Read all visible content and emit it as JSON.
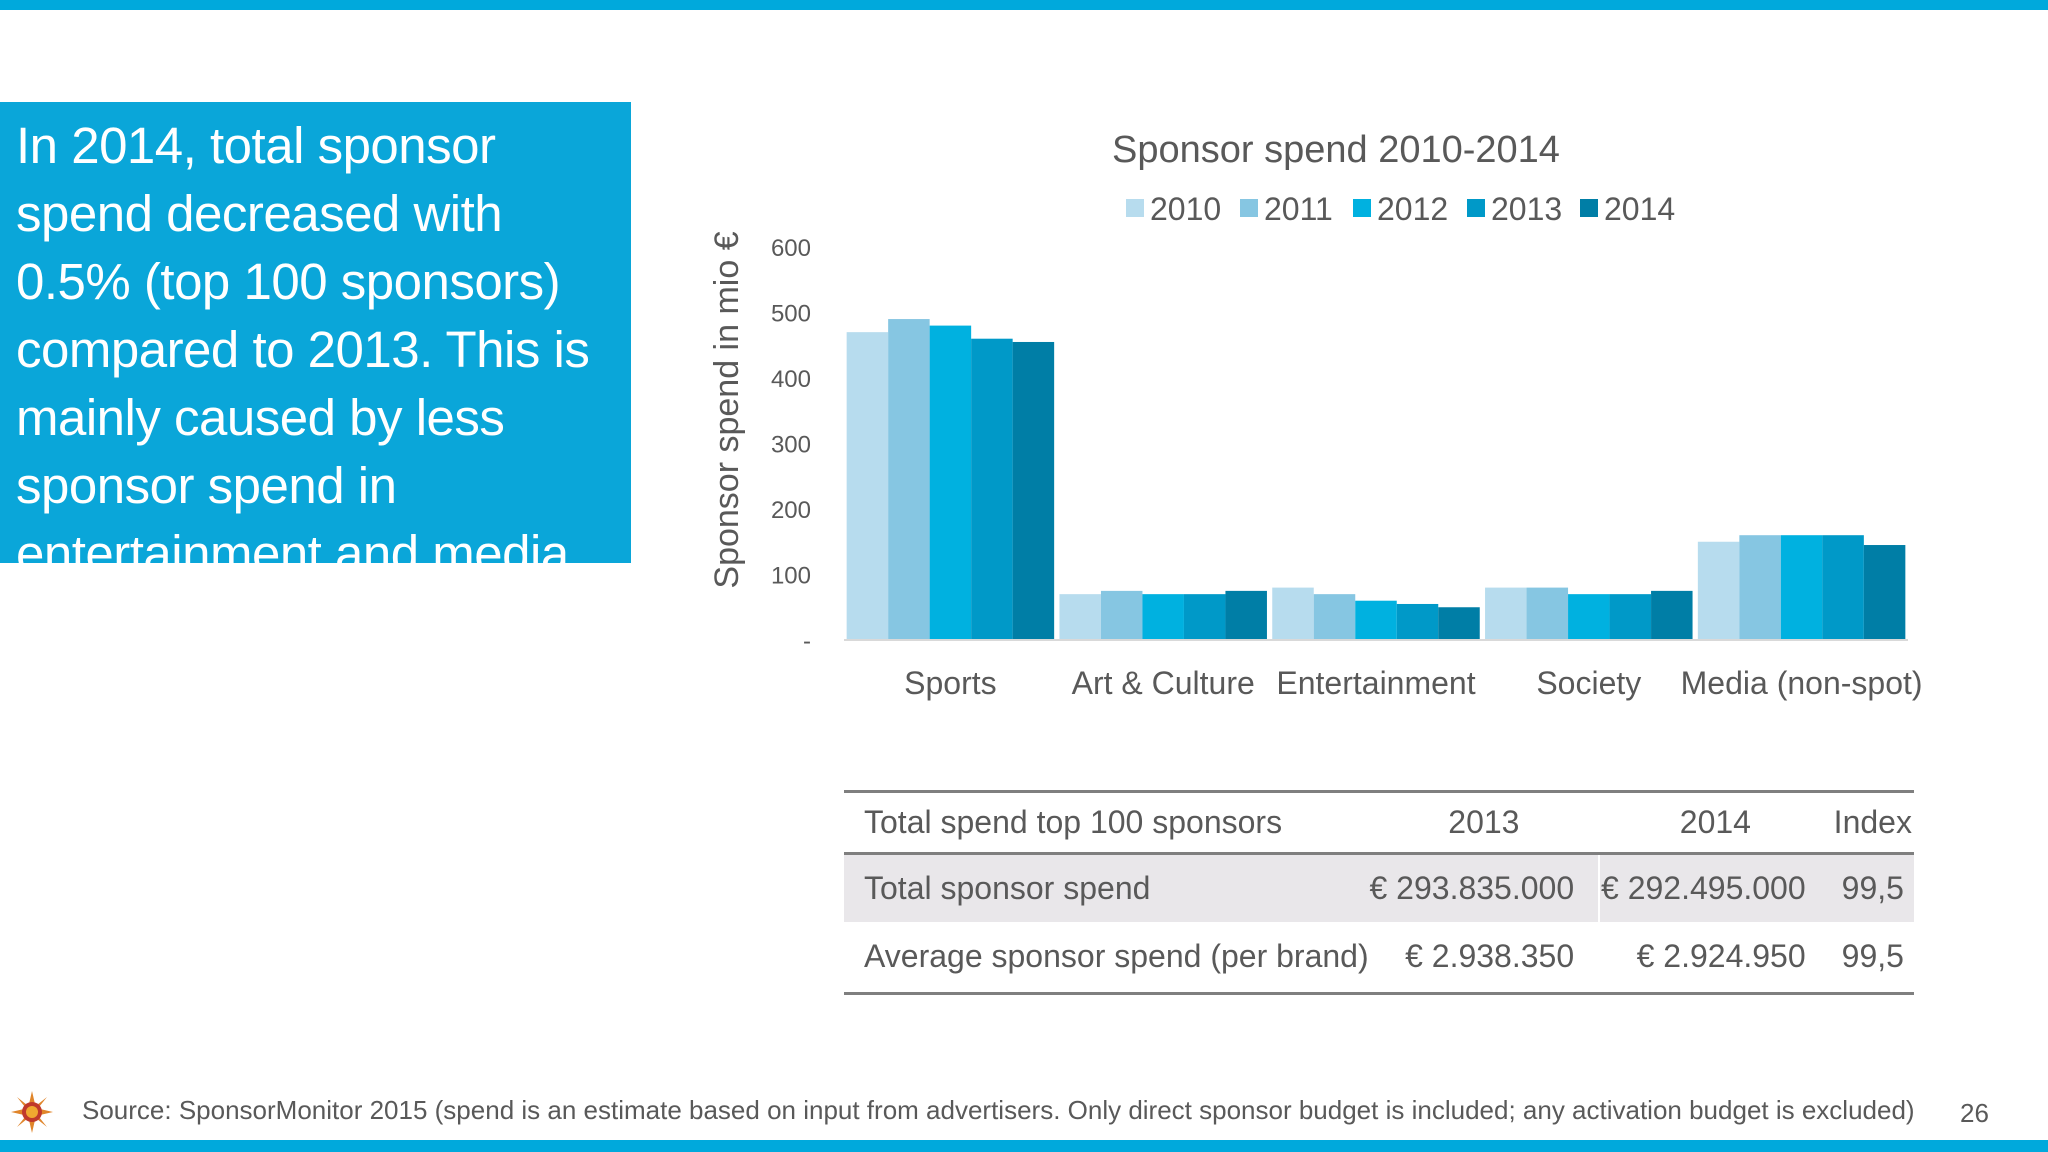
{
  "callout": {
    "text": "In 2014, total sponsor spend decreased with 0.5% (top 100 sponsors)  compared to 2013. This is mainly caused by less sponsor spend in entertainment and media"
  },
  "colors": {
    "accent": "#00a9dc",
    "callout_bg": "#0aa6d9",
    "series": [
      "#b7dcee",
      "#86c6e2",
      "#00b1e0",
      "#0099c8",
      "#007ea6"
    ]
  },
  "chart_data": {
    "type": "bar",
    "title": "Sponsor spend 2010-2014",
    "ylabel": "Sponsor spend in mio €",
    "xlabel": "",
    "ylim": [
      0,
      600
    ],
    "yticks": [
      {
        "value": 600,
        "label": "600"
      },
      {
        "value": 500,
        "label": "500"
      },
      {
        "value": 400,
        "label": "400"
      },
      {
        "value": 300,
        "label": "300"
      },
      {
        "value": 200,
        "label": "200"
      },
      {
        "value": 100,
        "label": "100"
      },
      {
        "value": 0,
        "label": "-"
      }
    ],
    "categories": [
      "Sports",
      "Art & Culture",
      "Entertainment",
      "Society",
      "Media (non-spot)"
    ],
    "series": [
      {
        "name": "2010",
        "values": [
          470,
          70,
          80,
          80,
          150
        ]
      },
      {
        "name": "2011",
        "values": [
          490,
          75,
          70,
          80,
          160
        ]
      },
      {
        "name": "2012",
        "values": [
          480,
          70,
          60,
          70,
          160
        ]
      },
      {
        "name": "2013",
        "values": [
          460,
          70,
          55,
          70,
          160
        ]
      },
      {
        "name": "2014",
        "values": [
          455,
          75,
          50,
          75,
          145
        ]
      }
    ],
    "legend_position": "top",
    "grid": false
  },
  "table": {
    "headers": [
      "Total spend top 100 sponsors",
      "2013",
      "2014",
      "Index"
    ],
    "rows": [
      [
        "Total sponsor spend",
        "€ 293.835.000",
        "€ 292.495.000",
        "99,5"
      ],
      [
        "Average sponsor spend (per brand)",
        "€ 2.938.350",
        "€ 2.924.950",
        "99,5"
      ]
    ]
  },
  "footer": {
    "icon": "sun-logo-icon",
    "source": "Source: SponsorMonitor 2015 (spend is an estimate based on input from advertisers. Only direct sponsor budget is included; any activation budget is excluded)",
    "page_number": "26"
  }
}
